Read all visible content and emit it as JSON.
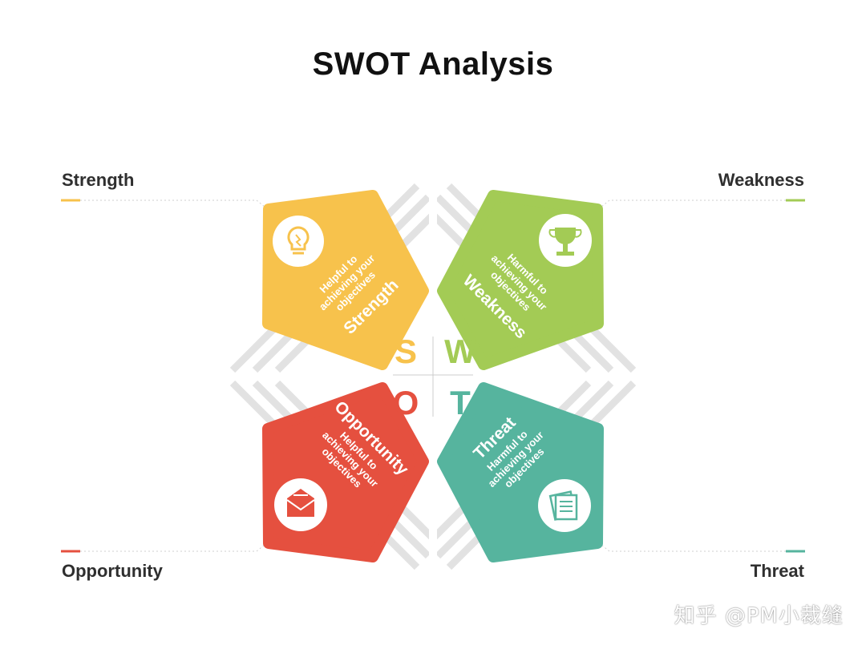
{
  "title": "SWOT Analysis",
  "quadrants": {
    "strength": {
      "corner_label": "Strength",
      "name": "Strength",
      "desc": [
        "Helpful to",
        "achieving your",
        "objectives"
      ],
      "letter": "S",
      "icon": "lightbulb-icon",
      "color": "#F7C24C"
    },
    "weakness": {
      "corner_label": "Weakness",
      "name": "Weakness",
      "desc": [
        "Harmful to",
        "achieving your",
        "objectives"
      ],
      "letter": "W",
      "icon": "trophy-icon",
      "color": "#A3CB55"
    },
    "opportunity": {
      "corner_label": "Opportunity",
      "name": "Opportunity",
      "desc": [
        "Helpful to",
        "achieving your",
        "objectives"
      ],
      "letter": "O",
      "icon": "envelope-icon",
      "color": "#E5503F"
    },
    "threat": {
      "corner_label": "Threat",
      "name": "Threat",
      "desc": [
        "Harmful to",
        "achieving your",
        "objectives"
      ],
      "letter": "T",
      "icon": "document-icon",
      "color": "#56B49E"
    }
  },
  "watermark": "知乎 @PM小裁缝"
}
